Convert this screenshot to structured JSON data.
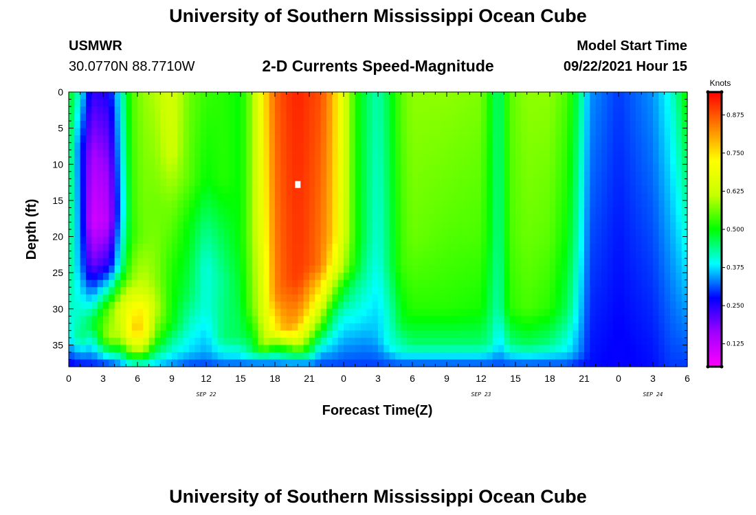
{
  "header": {
    "title": "University of Southern Mississippi Ocean Cube",
    "station_name": "USMWR",
    "station_coords": "30.0770N  88.7710W",
    "plot_title": "2-D Currents Speed-Magnitude",
    "model_start_label": "Model Start Time",
    "model_start_value": "09/22/2021 Hour 15"
  },
  "footer": {
    "title": "University of Southern Mississippi Ocean Cube"
  },
  "chart_data": {
    "type": "heatmap",
    "title": "2-D Currents Speed-Magnitude",
    "xlabel": "Forecast Time(Z)",
    "ylabel": "Depth (ft)",
    "x_hours_range": [
      0,
      54
    ],
    "x_ticks": [
      0,
      3,
      6,
      9,
      12,
      15,
      18,
      21,
      24,
      27,
      30,
      33,
      36,
      39,
      42,
      45,
      48,
      51,
      54
    ],
    "x_tick_labels": [
      "0",
      "3",
      "6",
      "9",
      "12",
      "15",
      "18",
      "21",
      "0",
      "3",
      "6",
      "9",
      "12",
      "15",
      "18",
      "21",
      "0",
      "3",
      "6"
    ],
    "day_labels": [
      {
        "hour": 12,
        "label": "SEP 22"
      },
      {
        "hour": 36,
        "label": "SEP 23"
      },
      {
        "hour": 51,
        "label": "SEP 24"
      }
    ],
    "y_range": [
      0,
      38
    ],
    "y_ticks": [
      0,
      5,
      10,
      15,
      20,
      25,
      30,
      35
    ],
    "y_tick_labels": [
      "0",
      "5",
      "10",
      "15",
      "20",
      "25",
      "30",
      "35"
    ],
    "colorbar": {
      "units": "Knots",
      "range": [
        0.05,
        0.95
      ],
      "ticks": [
        0.125,
        0.25,
        0.375,
        0.5,
        0.625,
        0.75,
        0.875
      ],
      "tick_labels": [
        "0.125",
        "0.250",
        "0.375",
        "0.500",
        "0.625",
        "0.750",
        "0.875"
      ],
      "colors": [
        "#ff00ff",
        "#a000ff",
        "#0000ff",
        "#00ffff",
        "#00ff00",
        "#c8ff00",
        "#ffff00",
        "#ff8000",
        "#ff0000"
      ]
    },
    "speed_columns": [
      {
        "hour": 0,
        "profile": [
          [
            0,
            0.5
          ],
          [
            25,
            0.45
          ],
          [
            34,
            0.38
          ],
          [
            38,
            0.26
          ]
        ]
      },
      {
        "hour": 1,
        "profile": [
          [
            0,
            0.4
          ],
          [
            8,
            0.3
          ],
          [
            24,
            0.34
          ],
          [
            34,
            0.45
          ],
          [
            38,
            0.27
          ]
        ]
      },
      {
        "hour": 2,
        "profile": [
          [
            0,
            0.24
          ],
          [
            10,
            0.14
          ],
          [
            18,
            0.1
          ],
          [
            24,
            0.2
          ],
          [
            32,
            0.48
          ],
          [
            38,
            0.28
          ]
        ]
      },
      {
        "hour": 3.5,
        "profile": [
          [
            0,
            0.26
          ],
          [
            12,
            0.16
          ],
          [
            18,
            0.13
          ],
          [
            24,
            0.25
          ],
          [
            30,
            0.55
          ],
          [
            34,
            0.6
          ],
          [
            38,
            0.28
          ]
        ]
      },
      {
        "hour": 4.5,
        "profile": [
          [
            0,
            0.4
          ],
          [
            16,
            0.34
          ],
          [
            24,
            0.42
          ],
          [
            30,
            0.65
          ],
          [
            34,
            0.6
          ],
          [
            38,
            0.32
          ]
        ]
      },
      {
        "hour": 5.5,
        "profile": [
          [
            0,
            0.54
          ],
          [
            20,
            0.52
          ],
          [
            26,
            0.58
          ],
          [
            30,
            0.72
          ],
          [
            33,
            0.77
          ],
          [
            35,
            0.65
          ],
          [
            38,
            0.38
          ]
        ]
      },
      {
        "hour": 6.5,
        "profile": [
          [
            0,
            0.58
          ],
          [
            20,
            0.56
          ],
          [
            27,
            0.62
          ],
          [
            30,
            0.74
          ],
          [
            33,
            0.76
          ],
          [
            35,
            0.66
          ],
          [
            38,
            0.38
          ]
        ]
      },
      {
        "hour": 7.5,
        "profile": [
          [
            0,
            0.6
          ],
          [
            16,
            0.56
          ],
          [
            26,
            0.58
          ],
          [
            30,
            0.62
          ],
          [
            34,
            0.55
          ],
          [
            38,
            0.36
          ]
        ]
      },
      {
        "hour": 9,
        "profile": [
          [
            0,
            0.64
          ],
          [
            8,
            0.63
          ],
          [
            15,
            0.57
          ],
          [
            24,
            0.52
          ],
          [
            32,
            0.5
          ],
          [
            36,
            0.4
          ],
          [
            38,
            0.33
          ]
        ]
      },
      {
        "hour": 10.5,
        "profile": [
          [
            0,
            0.56
          ],
          [
            12,
            0.55
          ],
          [
            18,
            0.5
          ],
          [
            28,
            0.46
          ],
          [
            36,
            0.37
          ],
          [
            38,
            0.3
          ]
        ]
      },
      {
        "hour": 12,
        "profile": [
          [
            0,
            0.53
          ],
          [
            12,
            0.5
          ],
          [
            18,
            0.45
          ],
          [
            24,
            0.4
          ],
          [
            30,
            0.4
          ],
          [
            36,
            0.35
          ],
          [
            38,
            0.3
          ]
        ]
      },
      {
        "hour": 13.5,
        "profile": [
          [
            0,
            0.52
          ],
          [
            12,
            0.52
          ],
          [
            18,
            0.48
          ],
          [
            26,
            0.44
          ],
          [
            34,
            0.45
          ],
          [
            37,
            0.36
          ],
          [
            38,
            0.3
          ]
        ]
      },
      {
        "hour": 15,
        "profile": [
          [
            0,
            0.5
          ],
          [
            20,
            0.5
          ],
          [
            28,
            0.48
          ],
          [
            34,
            0.46
          ],
          [
            37,
            0.36
          ],
          [
            38,
            0.3
          ]
        ]
      },
      {
        "hour": 16,
        "profile": [
          [
            0,
            0.58
          ],
          [
            20,
            0.58
          ],
          [
            30,
            0.56
          ],
          [
            36,
            0.45
          ],
          [
            38,
            0.3
          ]
        ]
      },
      {
        "hour": 17,
        "profile": [
          [
            0,
            0.74
          ],
          [
            20,
            0.7
          ],
          [
            30,
            0.65
          ],
          [
            35,
            0.6
          ],
          [
            37,
            0.38
          ],
          [
            38,
            0.3
          ]
        ]
      },
      {
        "hour": 18,
        "profile": [
          [
            0,
            0.86
          ],
          [
            28,
            0.83
          ],
          [
            33,
            0.72
          ],
          [
            36,
            0.45
          ],
          [
            38,
            0.3
          ]
        ]
      },
      {
        "hour": 19,
        "profile": [
          [
            0,
            0.9
          ],
          [
            26,
            0.88
          ],
          [
            33,
            0.8
          ],
          [
            35,
            0.55
          ],
          [
            37,
            0.4
          ],
          [
            38,
            0.3
          ]
        ]
      },
      {
        "hour": 20,
        "profile": [
          [
            0,
            0.92
          ],
          [
            26,
            0.9
          ],
          [
            32,
            0.8
          ],
          [
            35,
            0.62
          ],
          [
            37,
            0.4
          ],
          [
            38,
            0.3
          ]
        ]
      },
      {
        "hour": 21,
        "profile": [
          [
            0,
            0.9
          ],
          [
            24,
            0.88
          ],
          [
            30,
            0.76
          ],
          [
            34,
            0.58
          ],
          [
            37,
            0.4
          ],
          [
            38,
            0.3
          ]
        ]
      },
      {
        "hour": 22,
        "profile": [
          [
            0,
            0.88
          ],
          [
            24,
            0.84
          ],
          [
            28,
            0.72
          ],
          [
            32,
            0.55
          ],
          [
            36,
            0.36
          ],
          [
            38,
            0.3
          ]
        ]
      },
      {
        "hour": 23,
        "profile": [
          [
            0,
            0.8
          ],
          [
            20,
            0.78
          ],
          [
            24,
            0.72
          ],
          [
            27,
            0.6
          ],
          [
            31,
            0.46
          ],
          [
            36,
            0.35
          ],
          [
            38,
            0.3
          ]
        ]
      },
      {
        "hour": 24,
        "profile": [
          [
            0,
            0.66
          ],
          [
            20,
            0.64
          ],
          [
            24,
            0.6
          ],
          [
            27,
            0.5
          ],
          [
            31,
            0.4
          ],
          [
            36,
            0.33
          ],
          [
            38,
            0.3
          ]
        ]
      },
      {
        "hour": 25,
        "profile": [
          [
            0,
            0.52
          ],
          [
            20,
            0.52
          ],
          [
            24,
            0.5
          ],
          [
            27,
            0.44
          ],
          [
            32,
            0.38
          ],
          [
            38,
            0.3
          ]
        ]
      },
      {
        "hour": 26,
        "profile": [
          [
            0,
            0.46
          ],
          [
            20,
            0.45
          ],
          [
            26,
            0.42
          ],
          [
            32,
            0.37
          ],
          [
            38,
            0.3
          ]
        ]
      },
      {
        "hour": 27,
        "profile": [
          [
            0,
            0.42
          ],
          [
            22,
            0.4
          ],
          [
            28,
            0.38
          ],
          [
            34,
            0.36
          ],
          [
            38,
            0.3
          ]
        ]
      },
      {
        "hour": 28,
        "profile": [
          [
            0,
            0.48
          ],
          [
            24,
            0.46
          ],
          [
            30,
            0.42
          ],
          [
            35,
            0.4
          ],
          [
            38,
            0.3
          ]
        ]
      },
      {
        "hour": 29,
        "profile": [
          [
            0,
            0.55
          ],
          [
            24,
            0.53
          ],
          [
            32,
            0.48
          ],
          [
            36,
            0.4
          ],
          [
            38,
            0.3
          ]
        ]
      },
      {
        "hour": 30,
        "profile": [
          [
            0,
            0.58
          ],
          [
            20,
            0.56
          ],
          [
            30,
            0.52
          ],
          [
            35,
            0.45
          ],
          [
            38,
            0.3
          ]
        ]
      },
      {
        "hour": 33,
        "profile": [
          [
            0,
            0.58
          ],
          [
            18,
            0.55
          ],
          [
            30,
            0.52
          ],
          [
            35,
            0.45
          ],
          [
            38,
            0.3
          ]
        ]
      },
      {
        "hour": 36,
        "profile": [
          [
            0,
            0.57
          ],
          [
            20,
            0.54
          ],
          [
            30,
            0.51
          ],
          [
            35,
            0.45
          ],
          [
            38,
            0.3
          ]
        ]
      },
      {
        "hour": 37,
        "profile": [
          [
            0,
            0.49
          ],
          [
            20,
            0.48
          ],
          [
            30,
            0.45
          ],
          [
            35,
            0.42
          ],
          [
            38,
            0.3
          ]
        ]
      },
      {
        "hour": 37.5,
        "profile": [
          [
            0,
            0.44
          ],
          [
            20,
            0.43
          ],
          [
            30,
            0.42
          ],
          [
            36,
            0.35
          ],
          [
            38,
            0.3
          ]
        ]
      },
      {
        "hour": 38.5,
        "profile": [
          [
            0,
            0.55
          ],
          [
            20,
            0.54
          ],
          [
            30,
            0.52
          ],
          [
            35,
            0.44
          ],
          [
            38,
            0.3
          ]
        ]
      },
      {
        "hour": 40,
        "profile": [
          [
            0,
            0.58
          ],
          [
            20,
            0.56
          ],
          [
            30,
            0.54
          ],
          [
            35,
            0.46
          ],
          [
            38,
            0.3
          ]
        ]
      },
      {
        "hour": 42,
        "profile": [
          [
            0,
            0.58
          ],
          [
            20,
            0.55
          ],
          [
            30,
            0.52
          ],
          [
            35,
            0.44
          ],
          [
            38,
            0.3
          ]
        ]
      },
      {
        "hour": 43.5,
        "profile": [
          [
            0,
            0.54
          ],
          [
            20,
            0.5
          ],
          [
            30,
            0.46
          ],
          [
            36,
            0.38
          ],
          [
            38,
            0.3
          ]
        ]
      },
      {
        "hour": 44.5,
        "profile": [
          [
            0,
            0.46
          ],
          [
            20,
            0.42
          ],
          [
            30,
            0.38
          ],
          [
            36,
            0.34
          ],
          [
            38,
            0.28
          ]
        ]
      },
      {
        "hour": 45.5,
        "profile": [
          [
            0,
            0.34
          ],
          [
            38,
            0.28
          ]
        ]
      },
      {
        "hour": 48,
        "profile": [
          [
            0,
            0.3
          ],
          [
            38,
            0.27
          ]
        ]
      },
      {
        "hour": 51,
        "profile": [
          [
            0,
            0.34
          ],
          [
            38,
            0.28
          ]
        ]
      },
      {
        "hour": 52.5,
        "profile": [
          [
            0,
            0.4
          ],
          [
            38,
            0.3
          ]
        ]
      },
      {
        "hour": 53.5,
        "profile": [
          [
            0,
            0.47
          ],
          [
            38,
            0.3
          ]
        ]
      },
      {
        "hour": 54,
        "profile": [
          [
            0,
            0.52
          ],
          [
            38,
            0.3
          ]
        ]
      }
    ],
    "marker": {
      "hour": 20,
      "depth": 12.8
    }
  }
}
